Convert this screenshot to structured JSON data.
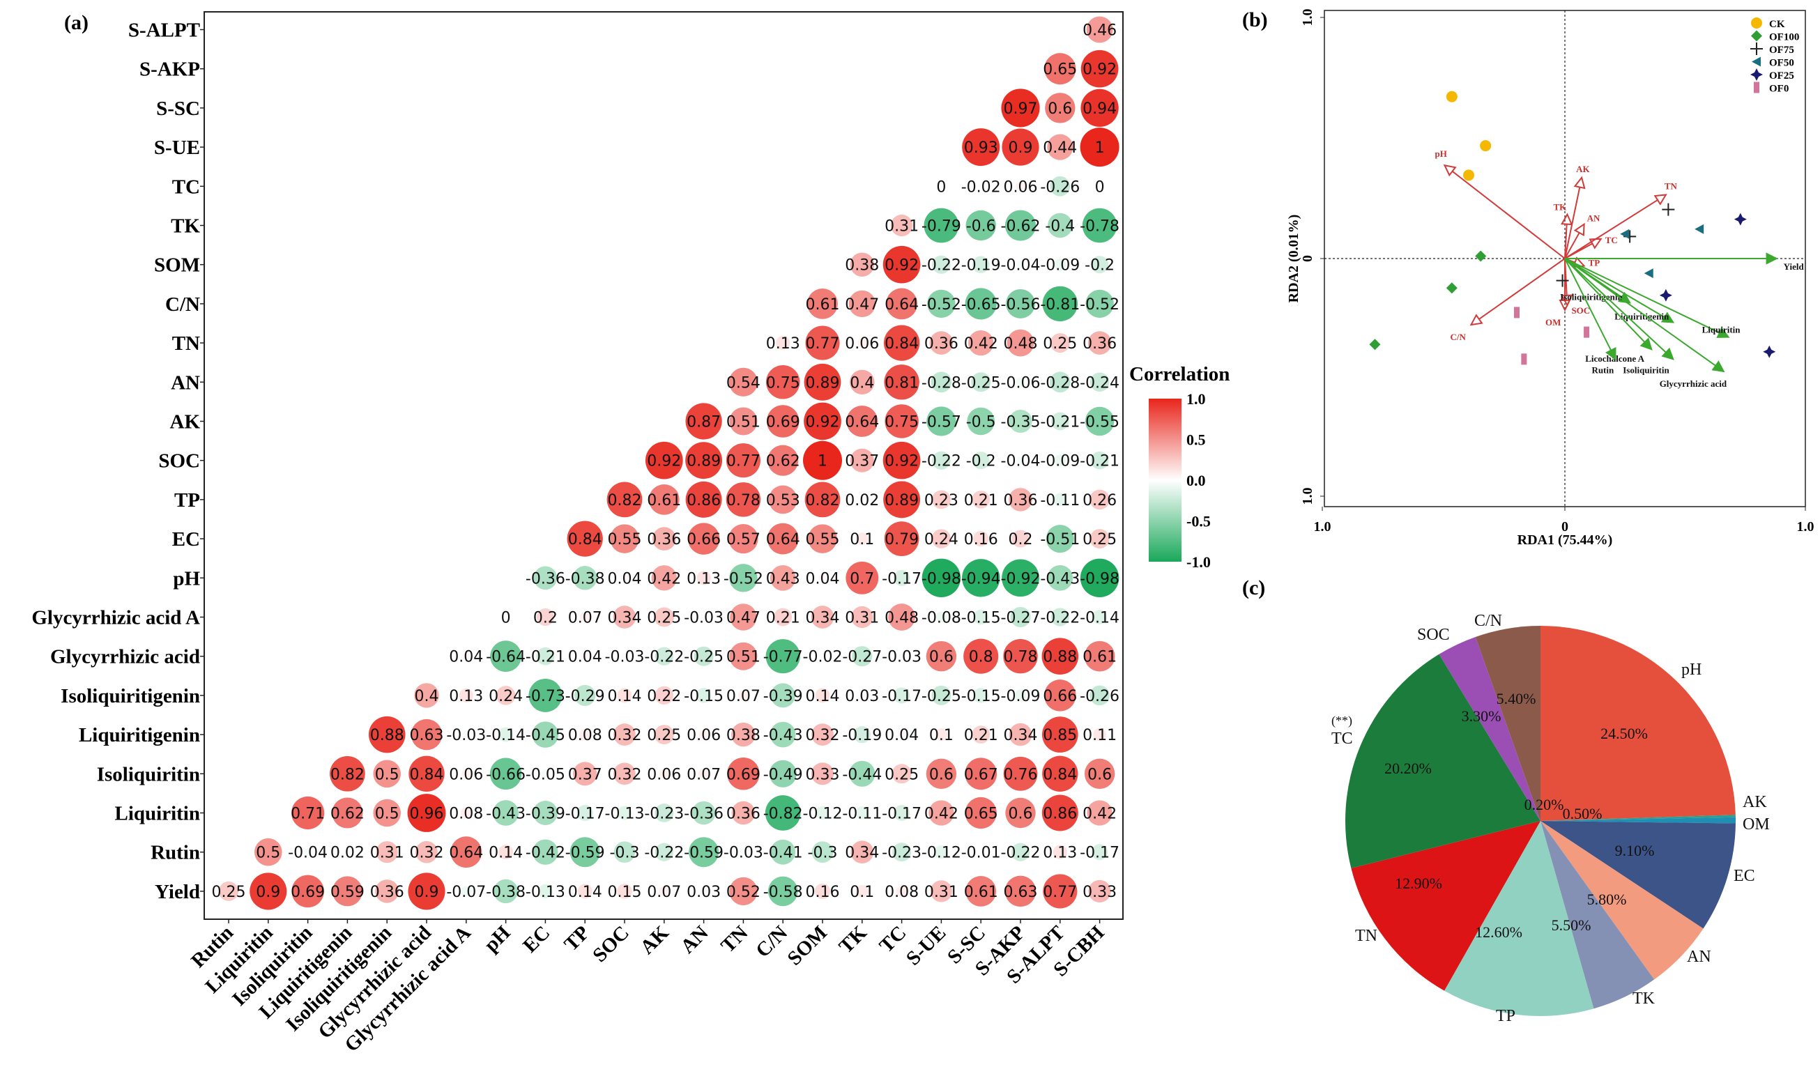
{
  "chart_data": [
    {
      "type": "heatmap",
      "panel_label": "(a)",
      "legend_title": "Correlation",
      "legend_ticks": [
        "1.0",
        "0.5",
        "0.0",
        "-0.5",
        "-1.0"
      ],
      "value_range": [
        -1,
        1
      ],
      "color_scale": {
        "negative": "#1aa85a",
        "zero": "#ffffff",
        "positive": "#e8261c"
      },
      "rows": [
        "S-ALPT",
        "S-AKP",
        "S-SC",
        "S-UE",
        "TC",
        "TK",
        "SOM",
        "C/N",
        "TN",
        "AN",
        "AK",
        "SOC",
        "TP",
        "EC",
        "pH",
        "Glycyrrhizic acid A",
        "Glycyrrhizic acid",
        "Isoliquiritigenin",
        "Liquiritigenin",
        "Isoliquiritin",
        "Liquiritin",
        "Rutin",
        "Yield"
      ],
      "columns": [
        "Rutin",
        "Liquiritin",
        "Isoliquiritin",
        "Liquiritigenin",
        "Isoliquiritigenin",
        "Glycyrrhizic acid",
        "Glycyrrhizic acid A",
        "pH",
        "EC",
        "TP",
        "SOC",
        "AK",
        "AN",
        "TN",
        "C/N",
        "SOM",
        "TK",
        "TC",
        "S-UE",
        "S-SC",
        "S-AKP",
        "S-ALPT",
        "S-CBH"
      ],
      "values": [
        [
          0.46
        ],
        [
          0.65,
          0.92
        ],
        [
          0.97,
          0.6,
          0.94
        ],
        [
          0.93,
          0.9,
          0.44,
          1
        ],
        [
          0,
          -0.02,
          0.06,
          -0.26,
          0
        ],
        [
          0.31,
          -0.79,
          -0.6,
          -0.62,
          -0.4,
          -0.78
        ],
        [
          0.38,
          0.92,
          -0.22,
          -0.19,
          -0.04,
          -0.09,
          -0.2
        ],
        [
          0.61,
          0.47,
          0.64,
          -0.52,
          -0.65,
          -0.56,
          -0.81,
          -0.52
        ],
        [
          0.13,
          0.77,
          0.06,
          0.84,
          0.36,
          0.42,
          0.48,
          0.25,
          0.36
        ],
        [
          0.54,
          0.75,
          0.89,
          0.4,
          0.81,
          -0.28,
          -0.25,
          -0.06,
          -0.28,
          -0.24
        ],
        [
          0.87,
          0.51,
          0.69,
          0.92,
          0.64,
          0.75,
          -0.57,
          -0.5,
          -0.35,
          -0.21,
          -0.55
        ],
        [
          0.92,
          0.89,
          0.77,
          0.62,
          1,
          0.37,
          0.92,
          -0.22,
          -0.2,
          -0.04,
          -0.09,
          -0.21
        ],
        [
          0.82,
          0.61,
          0.86,
          0.78,
          0.53,
          0.82,
          0.02,
          0.89,
          0.23,
          0.21,
          0.36,
          -0.11,
          0.26
        ],
        [
          0.84,
          0.55,
          0.36,
          0.66,
          0.57,
          0.64,
          0.55,
          0.1,
          0.79,
          0.24,
          0.16,
          0.2,
          -0.51,
          0.25
        ],
        [
          -0.36,
          -0.38,
          0.04,
          0.42,
          0.13,
          -0.52,
          0.43,
          0.04,
          0.7,
          -0.17,
          -0.98,
          -0.94,
          -0.92,
          -0.43,
          -0.98
        ],
        [
          0,
          0.2,
          0.07,
          0.34,
          0.25,
          -0.03,
          0.47,
          0.21,
          0.34,
          0.31,
          0.48,
          -0.08,
          -0.15,
          -0.27,
          -0.22,
          -0.14
        ],
        [
          0.04,
          -0.64,
          -0.21,
          0.04,
          -0.03,
          -0.22,
          -0.25,
          0.51,
          -0.77,
          -0.02,
          -0.27,
          -0.03,
          0.6,
          0.8,
          0.78,
          0.88,
          0.61
        ],
        [
          0.4,
          0.13,
          0.24,
          -0.73,
          -0.29,
          0.14,
          0.22,
          -0.15,
          0.07,
          -0.39,
          0.14,
          0.03,
          -0.17,
          -0.25,
          -0.15,
          -0.09,
          0.66,
          -0.26
        ],
        [
          0.88,
          0.63,
          -0.03,
          -0.14,
          -0.45,
          0.08,
          0.32,
          0.25,
          0.06,
          0.38,
          -0.43,
          0.32,
          -0.19,
          0.04,
          0.1,
          0.21,
          0.34,
          0.85,
          0.11
        ],
        [
          0.82,
          0.5,
          0.84,
          0.06,
          -0.66,
          -0.05,
          0.37,
          0.32,
          0.06,
          0.07,
          0.69,
          -0.49,
          0.33,
          -0.44,
          0.25,
          0.6,
          0.67,
          0.76,
          0.84,
          0.6
        ],
        [
          0.71,
          0.62,
          0.5,
          0.96,
          0.08,
          -0.43,
          -0.39,
          -0.17,
          -0.13,
          -0.23,
          -0.36,
          0.36,
          -0.82,
          -0.12,
          -0.11,
          -0.17,
          0.42,
          0.65,
          0.6,
          0.86,
          0.42
        ],
        [
          0.5,
          -0.04,
          0.02,
          0.31,
          0.32,
          0.64,
          0.14,
          -0.42,
          -0.59,
          -0.3,
          -0.22,
          -0.59,
          -0.03,
          -0.41,
          -0.3,
          0.34,
          -0.23,
          -0.12,
          -0.01,
          -0.22,
          0.13,
          -0.17
        ],
        [
          0.25,
          0.9,
          0.69,
          0.59,
          0.36,
          0.9,
          -0.07,
          -0.38,
          -0.13,
          0.14,
          0.15,
          0.07,
          0.03,
          0.52,
          -0.58,
          0.16,
          0.1,
          0.08,
          0.31,
          0.61,
          0.63,
          0.77,
          0.33
        ]
      ]
    },
    {
      "type": "scatter",
      "panel_label": "(b)",
      "xlabel": "RDA1 (75.44%)",
      "ylabel": "RDA2 (0.01%)",
      "xlim": [
        -1,
        1
      ],
      "ylim": [
        -1,
        1
      ],
      "x_ticks": [
        "1.0",
        "0",
        "1.0"
      ],
      "y_ticks": [
        "1.0",
        "0",
        "1.0"
      ],
      "legend": [
        {
          "name": "CK",
          "marker": "circle",
          "color": "#f5b800"
        },
        {
          "name": "OF100",
          "marker": "diamond",
          "color": "#2e9e35"
        },
        {
          "name": "OF75",
          "marker": "plus",
          "color": "#222222"
        },
        {
          "name": "OF50",
          "marker": "triangle-left",
          "color": "#1a6e80"
        },
        {
          "name": "OF25",
          "marker": "star",
          "color": "#1a1a6e"
        },
        {
          "name": "OF0",
          "marker": "bar",
          "color": "#d1759a"
        }
      ],
      "points": [
        {
          "group": "CK",
          "x": -0.47,
          "y": 0.66
        },
        {
          "group": "CK",
          "x": -0.33,
          "y": 0.46
        },
        {
          "group": "CK",
          "x": -0.4,
          "y": 0.34
        },
        {
          "group": "OF100",
          "x": -0.35,
          "y": 0.01
        },
        {
          "group": "OF100",
          "x": -0.47,
          "y": -0.12
        },
        {
          "group": "OF100",
          "x": -0.79,
          "y": -0.35
        },
        {
          "group": "OF75",
          "x": -0.01,
          "y": -0.09
        },
        {
          "group": "OF75",
          "x": 0.27,
          "y": 0.09
        },
        {
          "group": "OF75",
          "x": 0.43,
          "y": 0.2
        },
        {
          "group": "OF50",
          "x": 0.25,
          "y": 0.1
        },
        {
          "group": "OF50",
          "x": 0.35,
          "y": -0.06
        },
        {
          "group": "OF50",
          "x": 0.56,
          "y": 0.12
        },
        {
          "group": "OF25",
          "x": 0.42,
          "y": -0.15
        },
        {
          "group": "OF25",
          "x": 0.73,
          "y": 0.16
        },
        {
          "group": "OF25",
          "x": 0.85,
          "y": -0.38
        },
        {
          "group": "OF0",
          "x": -0.2,
          "y": -0.22
        },
        {
          "group": "OF0",
          "x": -0.17,
          "y": -0.41
        },
        {
          "group": "OF0",
          "x": 0.09,
          "y": -0.3
        }
      ],
      "env_arrows": [
        {
          "name": "pH",
          "x": -0.5,
          "y": 0.38
        },
        {
          "name": "AK",
          "x": 0.07,
          "y": 0.33
        },
        {
          "name": "TN",
          "x": 0.42,
          "y": 0.26
        },
        {
          "name": "TK",
          "x": 0.01,
          "y": 0.18
        },
        {
          "name": "AN",
          "x": 0.08,
          "y": 0.14
        },
        {
          "name": "TC",
          "x": 0.15,
          "y": 0.08
        },
        {
          "name": "TP",
          "x": 0.08,
          "y": -0.03
        },
        {
          "name": "C/N",
          "x": -0.39,
          "y": -0.27
        },
        {
          "name": "OM",
          "x": 0.0,
          "y": -0.21
        },
        {
          "name": "SOC",
          "x": 0.01,
          "y": -0.19
        }
      ],
      "response_arrows": [
        {
          "name": "Yield",
          "x": 0.88,
          "y": 0.0
        },
        {
          "name": "Isoliquiritigenin",
          "x": 0.27,
          "y": -0.18
        },
        {
          "name": "Liquiritigenin",
          "x": 0.45,
          "y": -0.26
        },
        {
          "name": "Liquiritin",
          "x": 0.68,
          "y": -0.32
        },
        {
          "name": "Licochalcone A",
          "x": 0.36,
          "y": -0.37
        },
        {
          "name": "Rutin",
          "x": 0.21,
          "y": -0.41
        },
        {
          "name": "Isoliquiritin",
          "x": 0.45,
          "y": -0.41
        },
        {
          "name": "Glycyrrhizic acid",
          "x": 0.66,
          "y": -0.46
        }
      ]
    },
    {
      "type": "pie",
      "panel_label": "(c)",
      "annotation": "(**)",
      "slices": [
        {
          "label": "pH",
          "value": 24.5,
          "pct": "24.50%",
          "color": "#e5503c"
        },
        {
          "label": "AK",
          "value": 0.2,
          "pct": "0.20%",
          "color": "#2e9e8f"
        },
        {
          "label": "OM",
          "value": 0.5,
          "pct": "0.50%",
          "color": "#1f8fb4"
        },
        {
          "label": "EC",
          "value": 9.1,
          "pct": "9.10%",
          "color": "#3c5488"
        },
        {
          "label": "AN",
          "value": 5.8,
          "pct": "5.80%",
          "color": "#f39b7f"
        },
        {
          "label": "TK",
          "value": 5.5,
          "pct": "5.50%",
          "color": "#8491b4"
        },
        {
          "label": "TP",
          "value": 12.6,
          "pct": "12.60%",
          "color": "#91d1c2"
        },
        {
          "label": "TN",
          "value": 12.9,
          "pct": "12.90%",
          "color": "#dc1416"
        },
        {
          "label": "TC",
          "value": 20.2,
          "pct": "20.20%",
          "color": "#1c7c3c"
        },
        {
          "label": "SOC",
          "value": 3.3,
          "pct": "3.30%",
          "color": "#9b4eb4"
        },
        {
          "label": "C/N",
          "value": 5.4,
          "pct": "5.40%",
          "color": "#8c5a4a"
        }
      ]
    }
  ]
}
